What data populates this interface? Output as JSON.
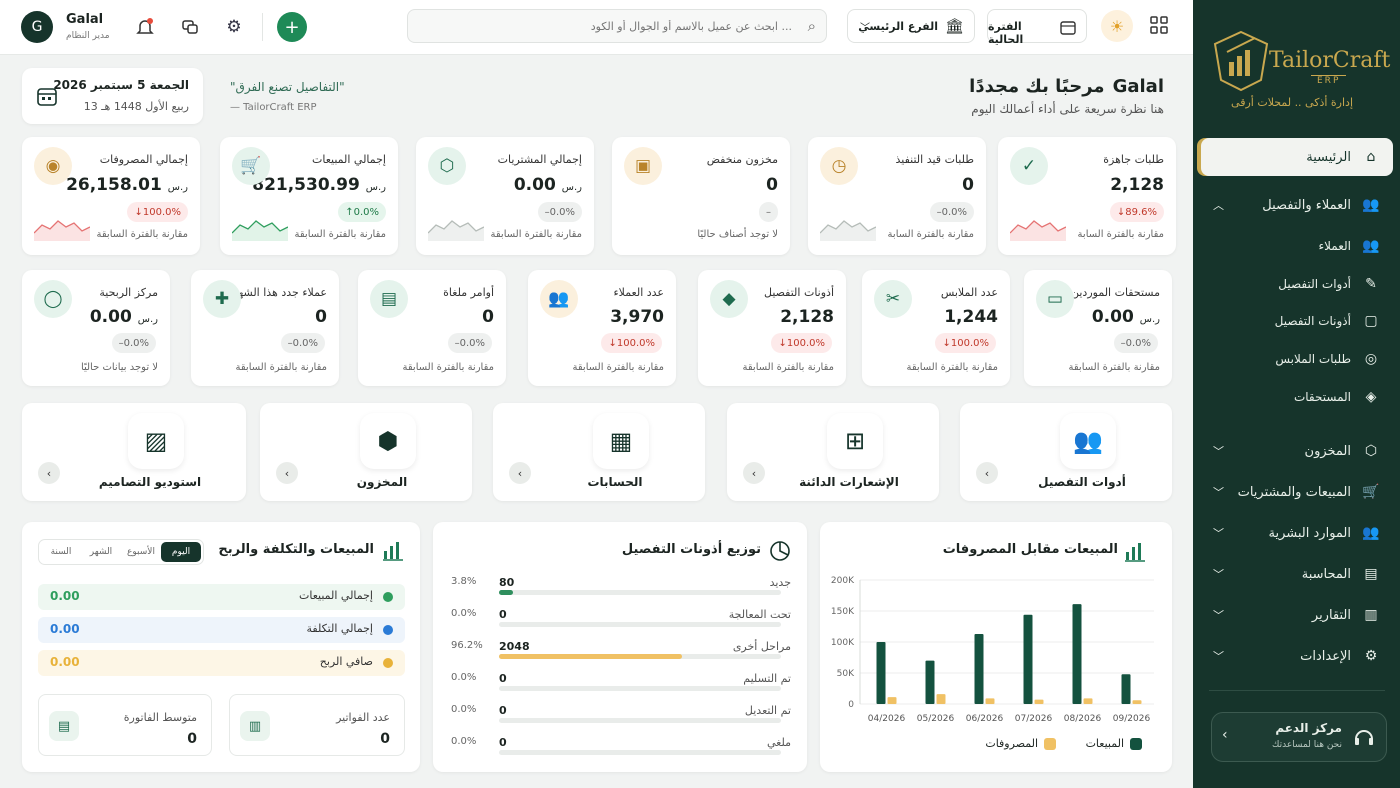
{
  "sidebar": {
    "brand": "TailorCraft",
    "brand_sub": "ERP",
    "tagline": "إدارة أذكى .. لمحلات أرقى",
    "items": [
      {
        "label": "الرئيسية"
      },
      {
        "label": "العملاء والتفصيل"
      },
      {
        "label": "العملاء"
      },
      {
        "label": "أدوات التفصيل"
      },
      {
        "label": "أذونات التفصيل"
      },
      {
        "label": "طلبات الملابس"
      },
      {
        "label": "المستحقات"
      },
      {
        "label": "المخزون"
      },
      {
        "label": "المبيعات والمشتريات"
      },
      {
        "label": "الموارد البشرية"
      },
      {
        "label": "المحاسبة"
      },
      {
        "label": "التقارير"
      },
      {
        "label": "الإعدادات"
      }
    ],
    "support_title": "مركز الدعم",
    "support_sub": "نحن هنا لمساعدتك"
  },
  "topbar": {
    "user_initial": "G",
    "user_name": "Galal",
    "user_role": "مدير النظام",
    "search_placeholder": "ابحث عن عميل بالاسم أو الجوال أو الكود ...",
    "branch": "الفرع الرئيسي",
    "period": "الفترة الحالية"
  },
  "header": {
    "welcome_prefix": "مرحبًا بك مجددًا",
    "welcome_name": "Galal",
    "subtitle": "هنا نظرة سريعة على أداء أعمالك اليوم",
    "quote": "\"التفاصيل تصنع الفرق\"",
    "quote_author": "— TailorCraft ERP",
    "date_greg": "الجمعة 5 سبتمبر 2026",
    "date_hijri": "13 ربيع الأول 1448 هـ"
  },
  "kpi_row1": [
    {
      "label": "طلبات جاهزة",
      "value": "2,128",
      "unit": "",
      "change": "89.6%",
      "trend": "down",
      "foot": "مقارنة بالفترة السابة",
      "icon": "check-circle-icon",
      "spark": "red"
    },
    {
      "label": "طلبات قيد التنفيذ",
      "value": "0",
      "unit": "",
      "change": "0.0%",
      "trend": "flat",
      "foot": "مقارنة بالفترة السابة",
      "icon": "clock-icon",
      "spark": "gray"
    },
    {
      "label": "مخزون منخفض",
      "value": "0",
      "unit": "",
      "change": "–",
      "trend": "none",
      "foot": "لا توجد أصناف حاليًا",
      "icon": "box-alert-icon",
      "spark": "none"
    },
    {
      "label": "إجمالي المشتريات",
      "value": "0.00",
      "unit": "ر.س",
      "change": "0.0%",
      "trend": "flat",
      "foot": "مقارنة بالفترة السابقة",
      "icon": "package-icon",
      "spark": "gray"
    },
    {
      "label": "إجمالي المبيعات",
      "value": "821,530.99",
      "unit": "ر.س",
      "change": "0.0%",
      "trend": "up",
      "foot": "مقارنة بالفترة السابقة",
      "icon": "cart-icon",
      "spark": "green"
    },
    {
      "label": "إجمالي المصروفات",
      "value": "26,158.01",
      "unit": "ر.س",
      "change": "100.0%",
      "trend": "down",
      "foot": "مقارنة بالفترة السابقة",
      "icon": "coins-icon",
      "spark": "red"
    }
  ],
  "kpi_row2": [
    {
      "label": "مستحقات الموردين",
      "value": "0.00",
      "unit": "ر.س",
      "change": "0.0%",
      "trend": "flat",
      "foot": "مقارنة بالفترة السابقة",
      "icon": "wallet-icon"
    },
    {
      "label": "عدد الملابس",
      "value": "1,244",
      "unit": "",
      "change": "100.0%",
      "trend": "down",
      "foot": "مقارنة بالفترة السابقة",
      "icon": "scissors-icon"
    },
    {
      "label": "أذونات التفصيل",
      "value": "2,128",
      "unit": "",
      "change": "100.0%",
      "trend": "down",
      "foot": "مقارنة بالفترة السابقة",
      "icon": "tag-icon"
    },
    {
      "label": "عدد العملاء",
      "value": "3,970",
      "unit": "",
      "change": "100.0%",
      "trend": "down",
      "foot": "مقارنة بالفترة السابقة",
      "icon": "users-icon"
    },
    {
      "label": "أوامر ملغاة",
      "value": "0",
      "unit": "",
      "change": "0.0%",
      "trend": "flat",
      "foot": "مقارنة بالفترة السابقة",
      "icon": "file-x-icon"
    },
    {
      "label": "عملاء جدد هذا الشهر",
      "value": "0",
      "unit": "",
      "change": "0.0%",
      "trend": "flat",
      "foot": "مقارنة بالفترة السابقة",
      "icon": "user-plus-icon"
    },
    {
      "label": "مركز الربحية",
      "value": "0.00",
      "unit": "ر.س",
      "change": "0.0%",
      "trend": "flat",
      "foot": "لا توجد بيانات حاليًا",
      "icon": "user-icon"
    }
  ],
  "modules": [
    {
      "label": "أدوات التفصيل",
      "icon": "users-group-icon"
    },
    {
      "label": "الإشعارات الدائنة",
      "icon": "file-plus-icon"
    },
    {
      "label": "الحسابات",
      "icon": "calculator-icon"
    },
    {
      "label": "المخزون",
      "icon": "cubes-icon"
    },
    {
      "label": "استوديو التصاميم",
      "icon": "image-icon"
    }
  ],
  "sales_expenses": {
    "title": "المبيعات مقابل المصروفات",
    "legend_sales": "المبيعات",
    "legend_expenses": "المصروفات",
    "colors": {
      "sales": "#14523f",
      "expenses": "#f0c164"
    }
  },
  "chart_data": {
    "type": "bar",
    "title": "المبيعات مقابل المصروفات",
    "categories": [
      "04/2026",
      "05/2026",
      "06/2026",
      "07/2026",
      "08/2026",
      "09/2026"
    ],
    "series": [
      {
        "name": "المبيعات",
        "values": [
          100000,
          70000,
          113000,
          144000,
          161000,
          48000
        ]
      },
      {
        "name": "المصروفات",
        "values": [
          11000,
          16000,
          9000,
          7000,
          9000,
          6000
        ]
      }
    ],
    "yticks": [
      "0",
      "50K",
      "100K",
      "150K",
      "200K"
    ],
    "ylim": [
      0,
      200000
    ],
    "grid": true,
    "legend": "bottom"
  },
  "distribution": {
    "title": "توزيع أذونات التفصيل",
    "rows": [
      {
        "label": "جديد",
        "count": "80",
        "pct": "3.8%",
        "fill": 3.8,
        "color": "#2f8f5e"
      },
      {
        "label": "تحت المعالجة",
        "count": "0",
        "pct": "0.0%",
        "fill": 0,
        "color": "#2f8f5e"
      },
      {
        "label": "مراحل أخرى",
        "count": "2048",
        "pct": "96.2%",
        "fill": 96.2,
        "color": "#f0c164"
      },
      {
        "label": "تم التسليم",
        "count": "0",
        "pct": "0.0%",
        "fill": 0,
        "color": "#2f8f5e"
      },
      {
        "label": "تم التعديل",
        "count": "0",
        "pct": "0.0%",
        "fill": 0,
        "color": "#2f8f5e"
      },
      {
        "label": "ملغي",
        "count": "0",
        "pct": "0.0%",
        "fill": 0,
        "color": "#2f8f5e"
      }
    ]
  },
  "profit": {
    "title": "المبيعات والتكلفة والربح",
    "tabs": [
      "اليوم",
      "الأسبوع",
      "الشهر",
      "السنة"
    ],
    "rows": [
      {
        "label": "إجمالي المبيعات",
        "value": "0.00",
        "color": "#2f9e5e",
        "bg": "#eef7f1"
      },
      {
        "label": "إجمالي التكلفة",
        "value": "0.00",
        "color": "#2b7bd6",
        "bg": "#eef4fb"
      },
      {
        "label": "صافي الربح",
        "value": "0.00",
        "color": "#e8b23a",
        "bg": "#fdf6e6"
      }
    ],
    "invoices_label": "عدد الفواتير",
    "invoices_value": "0",
    "avg_label": "متوسط الفاتورة",
    "avg_value": "0"
  }
}
